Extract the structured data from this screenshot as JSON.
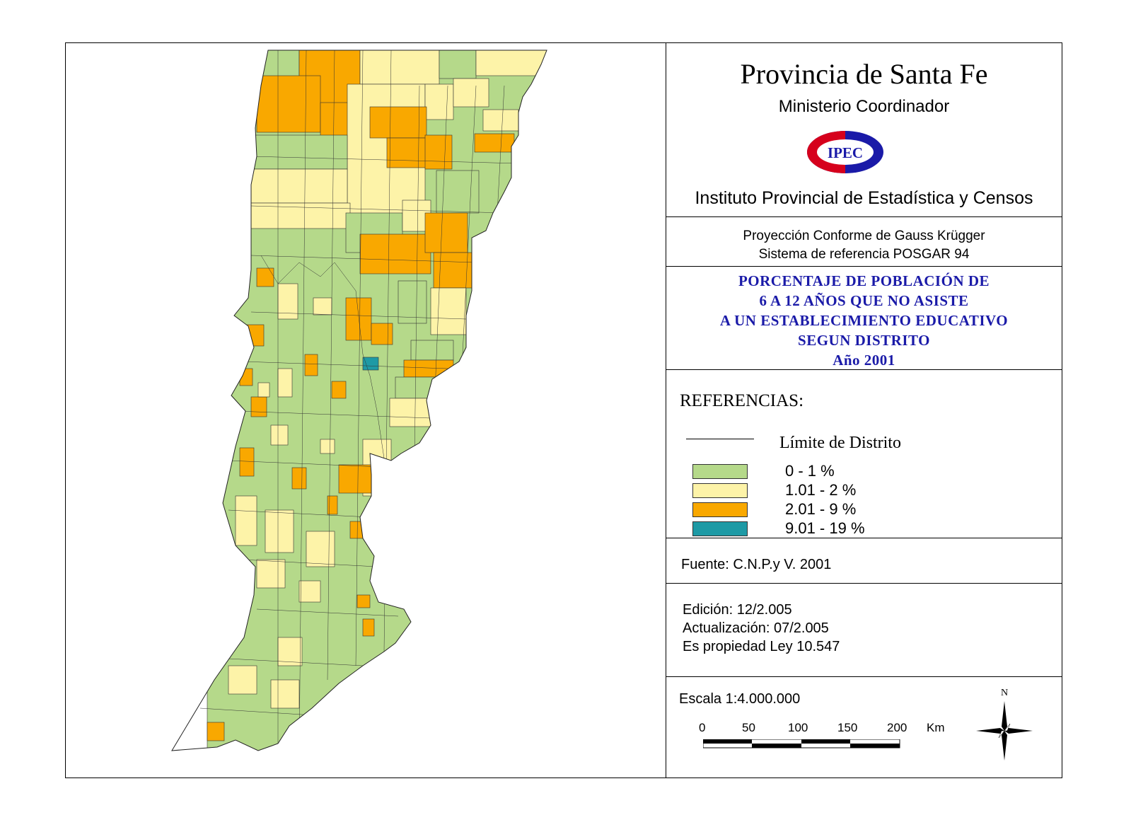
{
  "header": {
    "title": "Provincia de Santa Fe",
    "ministry": "Ministerio Coordinador",
    "logo_text": "IPEC",
    "institute": "Instituto Provincial de Estadística y Censos"
  },
  "projection": {
    "line1": "Proyección Conforme de Gauss Krügger",
    "line2": "Sistema de referencia POSGAR 94"
  },
  "theme": {
    "line1": "PORCENTAJE DE POBLACIÓN DE",
    "line2": "6 A 12 AÑOS QUE NO ASISTE",
    "line3": "A UN ESTABLECIMIENTO EDUCATIVO",
    "line4": "SEGUN DISTRITO",
    "line5": "Año 2001"
  },
  "legend": {
    "title": "REFERENCIAS:",
    "limit_label": "Límite de Distrito",
    "classes": [
      {
        "label": "0 - 1 %",
        "color": "#b5d98a"
      },
      {
        "label": "1.01 - 2 %",
        "color": "#fdf3a8"
      },
      {
        "label": "2.01 - 9 %",
        "color": "#f9a800"
      },
      {
        "label": "9.01 - 19 %",
        "color": "#1e9aa5"
      }
    ]
  },
  "source": {
    "text": "Fuente:  C.N.P.y V. 2001"
  },
  "edition": {
    "line1": "Edición:  12/2.005",
    "line2": "Actualización:  07/2.005",
    "line3": "Es propiedad Ley 10.547"
  },
  "scale": {
    "title": "Escala 1:4.000.000",
    "ticks": [
      "0",
      "50",
      "100",
      "150",
      "200"
    ],
    "unit": "Km"
  },
  "north": {
    "label": "N"
  },
  "colors": {
    "class_0_1": "#b5d98a",
    "class_1_2": "#fdf3a8",
    "class_2_9": "#f9a800",
    "class_9_19": "#1e9aa5",
    "theme_text": "#1a1aa8",
    "logo_red": "#d6001c",
    "logo_blue": "#1a1aa8"
  }
}
